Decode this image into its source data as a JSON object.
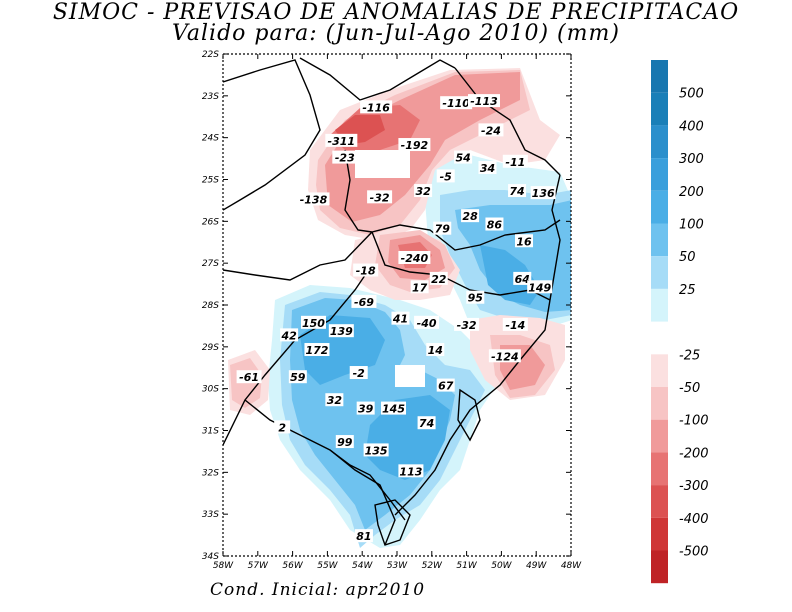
{
  "title": "SIMOC - PREVISAO DE ANOMALIAS DE PRECIPITACAO",
  "subtitle": "Valido para: (Jun-Jul-Ago 2010) (mm)",
  "footer": "Cond. Inicial: apr2010",
  "map": {
    "lat_range": [
      -34,
      -22
    ],
    "lon_range": [
      -58,
      -48
    ],
    "lat_labels": [
      "22S",
      "23S",
      "24S",
      "25S",
      "26S",
      "27S",
      "28S",
      "29S",
      "30S",
      "31S",
      "32S",
      "33S",
      "34S"
    ],
    "lon_labels": [
      "58W",
      "57W",
      "56W",
      "55W",
      "54W",
      "53W",
      "52W",
      "51W",
      "50W",
      "49W",
      "48W"
    ],
    "annotations": [
      {
        "text": "-116",
        "lon": -53.6,
        "lat": -23.3
      },
      {
        "text": "-110",
        "lon": -51.3,
        "lat": -23.2
      },
      {
        "text": "-113",
        "lon": -50.5,
        "lat": -23.15
      },
      {
        "text": "-24",
        "lon": -50.3,
        "lat": -23.85
      },
      {
        "text": "-311",
        "lon": -54.6,
        "lat": -24.1
      },
      {
        "text": "-192",
        "lon": -52.5,
        "lat": -24.2
      },
      {
        "text": "-23",
        "lon": -54.5,
        "lat": -24.5
      },
      {
        "text": "54",
        "lon": -51.1,
        "lat": -24.5
      },
      {
        "text": "-11",
        "lon": -49.6,
        "lat": -24.6
      },
      {
        "text": "34",
        "lon": -50.4,
        "lat": -24.75
      },
      {
        "text": "-5",
        "lon": -51.6,
        "lat": -24.95
      },
      {
        "text": "32",
        "lon": -52.25,
        "lat": -25.3
      },
      {
        "text": "74",
        "lon": -49.55,
        "lat": -25.3
      },
      {
        "text": "136",
        "lon": -48.8,
        "lat": -25.35
      },
      {
        "text": "-138",
        "lon": -55.4,
        "lat": -25.5
      },
      {
        "text": "-32",
        "lon": -53.5,
        "lat": -25.45
      },
      {
        "text": "28",
        "lon": -50.9,
        "lat": -25.9
      },
      {
        "text": "86",
        "lon": -50.2,
        "lat": -26.1
      },
      {
        "text": "79",
        "lon": -51.7,
        "lat": -26.2
      },
      {
        "text": "16",
        "lon": -49.35,
        "lat": -26.5
      },
      {
        "text": "-240",
        "lon": -52.5,
        "lat": -26.9
      },
      {
        "text": "-18",
        "lon": -53.9,
        "lat": -27.2
      },
      {
        "text": "22",
        "lon": -51.8,
        "lat": -27.4
      },
      {
        "text": "17",
        "lon": -52.35,
        "lat": -27.6
      },
      {
        "text": "64",
        "lon": -49.4,
        "lat": -27.4
      },
      {
        "text": "149",
        "lon": -48.9,
        "lat": -27.6
      },
      {
        "text": "95",
        "lon": -50.75,
        "lat": -27.85
      },
      {
        "text": "-69",
        "lon": -53.95,
        "lat": -27.95
      },
      {
        "text": "150",
        "lon": -55.4,
        "lat": -28.45
      },
      {
        "text": "41",
        "lon": -52.9,
        "lat": -28.35
      },
      {
        "text": "-40",
        "lon": -52.15,
        "lat": -28.45
      },
      {
        "text": "-32",
        "lon": -51.0,
        "lat": -28.5
      },
      {
        "text": "-14",
        "lon": -49.6,
        "lat": -28.5
      },
      {
        "text": "42",
        "lon": -56.1,
        "lat": -28.75
      },
      {
        "text": "139",
        "lon": -54.6,
        "lat": -28.65
      },
      {
        "text": "172",
        "lon": -55.3,
        "lat": -29.1
      },
      {
        "text": "14",
        "lon": -51.9,
        "lat": -29.1
      },
      {
        "text": "-124",
        "lon": -49.9,
        "lat": -29.25
      },
      {
        "text": "-61",
        "lon": -57.25,
        "lat": -29.75
      },
      {
        "text": "59",
        "lon": -55.85,
        "lat": -29.75
      },
      {
        "text": "-2",
        "lon": -54.1,
        "lat": -29.65
      },
      {
        "text": "67",
        "lon": -51.6,
        "lat": -29.95
      },
      {
        "text": "32",
        "lon": -54.8,
        "lat": -30.3
      },
      {
        "text": "39",
        "lon": -53.9,
        "lat": -30.5
      },
      {
        "text": "145",
        "lon": -53.1,
        "lat": -30.5
      },
      {
        "text": "74",
        "lon": -52.15,
        "lat": -30.85
      },
      {
        "text": "2",
        "lon": -56.3,
        "lat": -30.95
      },
      {
        "text": "99",
        "lon": -54.5,
        "lat": -31.3
      },
      {
        "text": "135",
        "lon": -53.6,
        "lat": -31.5
      },
      {
        "text": "113",
        "lon": -52.6,
        "lat": -32.0
      },
      {
        "text": "81",
        "lon": -53.95,
        "lat": -33.55
      }
    ]
  },
  "colorbar": {
    "positive": [
      {
        "label": "500",
        "color": "#1a7fb8"
      },
      {
        "label": "400",
        "color": "#2b8fcc"
      },
      {
        "label": "300",
        "color": "#3a9fdc"
      },
      {
        "label": "200",
        "color": "#4aaee6"
      },
      {
        "label": "100",
        "color": "#6ec2ef"
      },
      {
        "label": "50",
        "color": "#a6dcf7"
      },
      {
        "label": "25",
        "color": "#d4f4fb"
      }
    ],
    "negative": [
      {
        "label": "-25",
        "color": "#fbe0e0"
      },
      {
        "label": "-50",
        "color": "#f7c4c4"
      },
      {
        "label": "-100",
        "color": "#f09a9a"
      },
      {
        "label": "-200",
        "color": "#e77373"
      },
      {
        "label": "-300",
        "color": "#dc5252"
      },
      {
        "label": "-400",
        "color": "#cf3636"
      },
      {
        "label": "-500",
        "color": "#bf2326"
      }
    ],
    "top_color": "#1877b0",
    "bottom_color": "#b01e22"
  }
}
